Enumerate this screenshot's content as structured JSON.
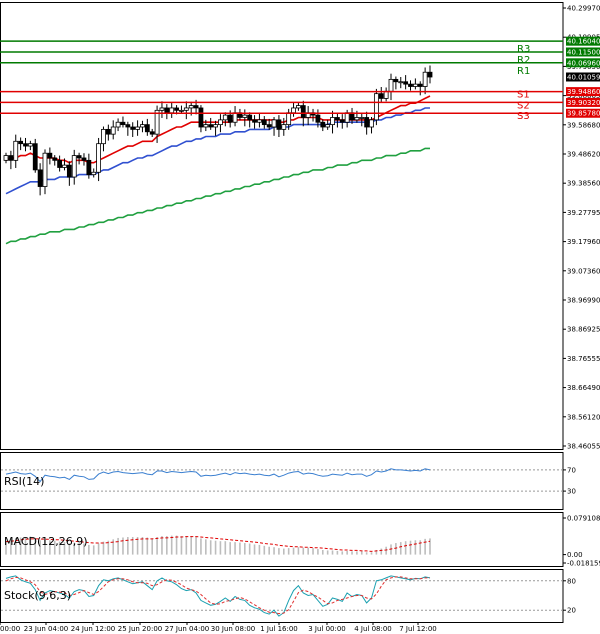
{
  "chart_data": [
    {
      "type": "candlestick",
      "title": "",
      "y_ticks": [
        "40.29970",
        "40.19905",
        "39.79650",
        "39.68665",
        "39.58680",
        "39.48620",
        "39.38560",
        "39.27795",
        "39.17960",
        "39.07360",
        "38.96990",
        "38.86925",
        "38.76555",
        "38.66490",
        "38.56120",
        "38.46055"
      ],
      "ylim": [
        38.46055,
        40.2997
      ],
      "x_ticks": [
        "00:00",
        "23 Jun 04:00",
        "24 Jun 12:00",
        "25 Jun 20:00",
        "27 Jun 04:00",
        "30 Jun 08:00",
        "1 Jul 16:00",
        "3 Jul 00:00",
        "4 Jul 08:00",
        "7 Jul 12:00"
      ],
      "current_price": "40.01059",
      "levels": [
        {
          "name": "R3",
          "value": 40.1604,
          "label": "40.16040",
          "color": "#007a00"
        },
        {
          "name": "R2",
          "value": 40.115,
          "label": "40.11500",
          "color": "#007a00"
        },
        {
          "name": "R1",
          "value": 40.0696,
          "label": "40.06960",
          "color": "#007a00"
        },
        {
          "name": "S1",
          "value": 39.9486,
          "label": "39.94860",
          "color": "#e00000"
        },
        {
          "name": "S2",
          "value": 39.9032,
          "label": "39.90320",
          "color": "#e00000"
        },
        {
          "name": "S3",
          "value": 39.8578,
          "label": "39.85780",
          "color": "#e00000"
        }
      ],
      "closes": [
        39.68,
        39.66,
        39.74,
        39.73,
        39.72,
        39.73,
        39.62,
        39.55,
        39.69,
        39.67,
        39.66,
        39.63,
        39.64,
        39.59,
        39.68,
        39.67,
        39.66,
        39.6,
        39.61,
        39.73,
        39.79,
        39.77,
        39.8,
        39.82,
        39.81,
        39.8,
        39.79,
        39.8,
        39.81,
        39.78,
        39.77,
        39.87,
        39.88,
        39.86,
        39.88,
        39.87,
        39.87,
        39.88,
        39.89,
        39.88,
        39.8,
        39.81,
        39.8,
        39.81,
        39.83,
        39.85,
        39.82,
        39.86,
        39.84,
        39.85,
        39.83,
        39.82,
        39.83,
        39.81,
        39.8,
        39.83,
        39.79,
        39.81,
        39.86,
        39.88,
        39.89,
        39.84,
        39.86,
        39.85,
        39.82,
        39.8,
        39.81,
        39.84,
        39.83,
        39.82,
        39.86,
        39.83,
        39.84,
        39.84,
        39.8,
        39.83,
        39.94,
        39.92,
        39.95,
        40.0,
        39.99,
        39.99,
        39.98,
        39.97,
        39.98,
        39.97,
        40.03,
        40.01
      ],
      "series": [
        {
          "name": "",
          "color": "#e00000",
          "values": [
            39.66,
            39.67,
            39.67,
            39.68,
            39.68,
            39.69,
            39.68,
            39.67,
            39.67,
            39.67,
            39.67,
            39.66,
            39.66,
            39.65,
            39.66,
            39.66,
            39.66,
            39.65,
            39.65,
            39.66,
            39.67,
            39.68,
            39.69,
            39.7,
            39.71,
            39.72,
            39.72,
            39.73,
            39.74,
            39.74,
            39.74,
            39.76,
            39.77,
            39.78,
            39.79,
            39.8,
            39.8,
            39.81,
            39.82,
            39.82,
            39.82,
            39.82,
            39.82,
            39.82,
            39.82,
            39.82,
            39.82,
            39.83,
            39.83,
            39.83,
            39.83,
            39.83,
            39.83,
            39.83,
            39.83,
            39.83,
            39.82,
            39.82,
            39.83,
            39.83,
            39.84,
            39.84,
            39.84,
            39.84,
            39.84,
            39.83,
            39.83,
            39.83,
            39.83,
            39.83,
            39.83,
            39.83,
            39.83,
            39.83,
            39.83,
            39.83,
            39.84,
            39.85,
            39.86,
            39.87,
            39.88,
            39.89,
            39.89,
            39.9,
            39.9,
            39.91,
            39.92,
            39.93
          ]
        },
        {
          "name": "",
          "color": "#3050d0",
          "values": [
            39.52,
            39.53,
            39.54,
            39.55,
            39.56,
            39.57,
            39.57,
            39.57,
            39.58,
            39.58,
            39.58,
            39.59,
            39.59,
            39.59,
            39.59,
            39.6,
            39.6,
            39.6,
            39.6,
            39.61,
            39.62,
            39.62,
            39.63,
            39.64,
            39.65,
            39.65,
            39.66,
            39.67,
            39.67,
            39.68,
            39.68,
            39.69,
            39.7,
            39.71,
            39.72,
            39.72,
            39.73,
            39.74,
            39.74,
            39.75,
            39.75,
            39.76,
            39.76,
            39.76,
            39.77,
            39.77,
            39.77,
            39.78,
            39.78,
            39.78,
            39.79,
            39.79,
            39.79,
            39.79,
            39.79,
            39.8,
            39.8,
            39.8,
            39.8,
            39.81,
            39.81,
            39.81,
            39.81,
            39.81,
            39.81,
            39.81,
            39.81,
            39.82,
            39.82,
            39.82,
            39.82,
            39.82,
            39.82,
            39.82,
            39.82,
            39.82,
            39.83,
            39.83,
            39.84,
            39.84,
            39.85,
            39.85,
            39.86,
            39.86,
            39.87,
            39.87,
            39.88,
            39.88
          ]
        },
        {
          "name": "",
          "color": "#20a040",
          "values": [
            39.31,
            39.32,
            39.32,
            39.33,
            39.33,
            39.34,
            39.34,
            39.35,
            39.35,
            39.36,
            39.36,
            39.36,
            39.37,
            39.37,
            39.37,
            39.38,
            39.38,
            39.39,
            39.39,
            39.4,
            39.4,
            39.41,
            39.41,
            39.42,
            39.42,
            39.43,
            39.43,
            39.44,
            39.44,
            39.45,
            39.45,
            39.46,
            39.46,
            39.47,
            39.47,
            39.48,
            39.48,
            39.49,
            39.49,
            39.5,
            39.5,
            39.51,
            39.51,
            39.52,
            39.52,
            39.53,
            39.53,
            39.54,
            39.54,
            39.55,
            39.55,
            39.56,
            39.56,
            39.57,
            39.57,
            39.58,
            39.58,
            39.59,
            39.59,
            39.6,
            39.6,
            39.61,
            39.61,
            39.62,
            39.62,
            39.62,
            39.63,
            39.63,
            39.64,
            39.64,
            39.64,
            39.65,
            39.65,
            39.66,
            39.66,
            39.66,
            39.67,
            39.67,
            39.68,
            39.68,
            39.68,
            39.69,
            39.69,
            39.7,
            39.7,
            39.7,
            39.71,
            39.71
          ]
        }
      ]
    },
    {
      "type": "line",
      "title": "RSI(14)",
      "y_ticks": [
        "70",
        "30"
      ],
      "ylim": [
        0,
        100
      ],
      "series": [
        {
          "name": "",
          "color": "#3a7fd0",
          "values": [
            62,
            64,
            66,
            63,
            62,
            64,
            58,
            48,
            60,
            58,
            57,
            55,
            56,
            52,
            60,
            58,
            57,
            52,
            53,
            62,
            66,
            63,
            66,
            67,
            65,
            64,
            63,
            64,
            65,
            62,
            61,
            68,
            68,
            65,
            67,
            66,
            65,
            66,
            67,
            66,
            58,
            60,
            59,
            60,
            62,
            64,
            61,
            65,
            63,
            64,
            62,
            61,
            62,
            60,
            59,
            62,
            57,
            60,
            64,
            66,
            67,
            62,
            64,
            63,
            60,
            58,
            59,
            62,
            61,
            60,
            64,
            61,
            62,
            62,
            58,
            61,
            68,
            66,
            68,
            72,
            70,
            70,
            69,
            68,
            69,
            68,
            72,
            70
          ]
        }
      ]
    },
    {
      "type": "bar",
      "title": "MACD(12,26,9)",
      "y_ticks": [
        "0.079108",
        "0.00",
        "-0.018159"
      ],
      "ylim": [
        -0.018159,
        0.079108
      ],
      "values": [
        0.03,
        0.033,
        0.036,
        0.037,
        0.038,
        0.039,
        0.036,
        0.031,
        0.032,
        0.031,
        0.03,
        0.028,
        0.027,
        0.024,
        0.026,
        0.025,
        0.024,
        0.021,
        0.02,
        0.024,
        0.028,
        0.03,
        0.033,
        0.036,
        0.037,
        0.038,
        0.038,
        0.038,
        0.038,
        0.037,
        0.035,
        0.038,
        0.04,
        0.04,
        0.041,
        0.041,
        0.04,
        0.04,
        0.04,
        0.039,
        0.035,
        0.033,
        0.031,
        0.03,
        0.029,
        0.029,
        0.027,
        0.027,
        0.026,
        0.025,
        0.024,
        0.022,
        0.021,
        0.019,
        0.017,
        0.016,
        0.014,
        0.013,
        0.014,
        0.015,
        0.016,
        0.015,
        0.015,
        0.014,
        0.012,
        0.01,
        0.009,
        0.009,
        0.008,
        0.007,
        0.008,
        0.007,
        0.007,
        0.007,
        0.005,
        0.005,
        0.01,
        0.013,
        0.017,
        0.022,
        0.025,
        0.027,
        0.029,
        0.03,
        0.031,
        0.031,
        0.034,
        0.035
      ],
      "series": [
        {
          "name": "",
          "color": "#e00000",
          "values": [
            0.028,
            0.029,
            0.03,
            0.032,
            0.033,
            0.034,
            0.034,
            0.034,
            0.033,
            0.033,
            0.032,
            0.032,
            0.031,
            0.03,
            0.029,
            0.028,
            0.027,
            0.026,
            0.025,
            0.025,
            0.025,
            0.026,
            0.027,
            0.028,
            0.03,
            0.031,
            0.032,
            0.033,
            0.034,
            0.034,
            0.034,
            0.035,
            0.036,
            0.036,
            0.037,
            0.038,
            0.038,
            0.039,
            0.039,
            0.039,
            0.038,
            0.037,
            0.036,
            0.035,
            0.034,
            0.033,
            0.032,
            0.031,
            0.03,
            0.029,
            0.028,
            0.027,
            0.026,
            0.024,
            0.023,
            0.022,
            0.02,
            0.019,
            0.018,
            0.017,
            0.017,
            0.016,
            0.016,
            0.015,
            0.015,
            0.014,
            0.013,
            0.012,
            0.011,
            0.01,
            0.01,
            0.009,
            0.009,
            0.008,
            0.008,
            0.007,
            0.008,
            0.009,
            0.01,
            0.012,
            0.014,
            0.017,
            0.019,
            0.021,
            0.023,
            0.025,
            0.027,
            0.029
          ]
        }
      ]
    },
    {
      "type": "line",
      "title": "Stock(9,6,3)",
      "y_ticks": [
        "80",
        "20"
      ],
      "ylim": [
        0,
        100
      ],
      "series": [
        {
          "name": "",
          "color": "#1aa0b0",
          "values": [
            85,
            88,
            90,
            82,
            78,
            75,
            62,
            40,
            55,
            60,
            58,
            55,
            52,
            45,
            58,
            62,
            60,
            48,
            50,
            70,
            82,
            80,
            84,
            86,
            82,
            78,
            74,
            76,
            78,
            70,
            62,
            80,
            86,
            80,
            78,
            72,
            64,
            60,
            62,
            55,
            40,
            35,
            30,
            32,
            38,
            45,
            38,
            48,
            42,
            40,
            30,
            25,
            22,
            15,
            12,
            20,
            8,
            15,
            40,
            60,
            70,
            55,
            50,
            52,
            40,
            28,
            32,
            45,
            42,
            38,
            55,
            48,
            52,
            50,
            35,
            45,
            80,
            82,
            86,
            90,
            88,
            86,
            84,
            82,
            85,
            84,
            88,
            86
          ]
        },
        {
          "name": "",
          "color": "#e03030",
          "values": [
            80,
            84,
            87,
            86,
            82,
            78,
            72,
            58,
            52,
            55,
            58,
            57,
            55,
            50,
            52,
            56,
            60,
            56,
            52,
            58,
            68,
            78,
            82,
            84,
            84,
            82,
            78,
            76,
            76,
            75,
            70,
            72,
            78,
            82,
            81,
            77,
            72,
            65,
            62,
            59,
            52,
            43,
            35,
            32,
            33,
            38,
            40,
            43,
            46,
            43,
            37,
            31,
            25,
            20,
            16,
            15,
            13,
            14,
            21,
            38,
            56,
            61,
            58,
            52,
            47,
            40,
            33,
            35,
            40,
            42,
            45,
            48,
            50,
            50,
            45,
            43,
            53,
            69,
            82,
            86,
            88,
            88,
            86,
            84,
            84,
            84,
            86,
            86
          ]
        }
      ]
    }
  ]
}
